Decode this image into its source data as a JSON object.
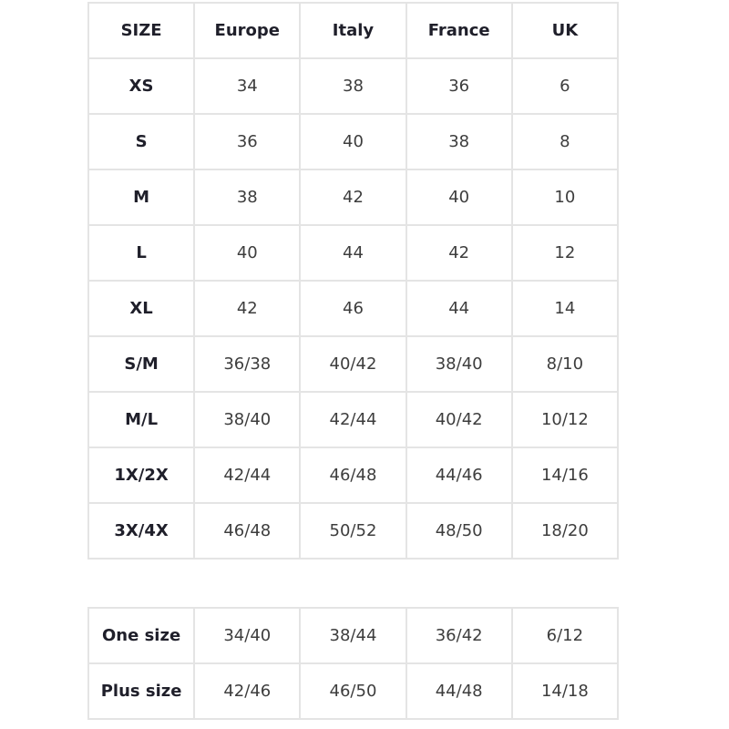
{
  "size_table": {
    "headers": [
      "SIZE",
      "Europe",
      "Italy",
      "France",
      "UK"
    ],
    "rows": [
      [
        "XS",
        "34",
        "38",
        "36",
        "6"
      ],
      [
        "S",
        "36",
        "40",
        "38",
        "8"
      ],
      [
        "M",
        "38",
        "42",
        "40",
        "10"
      ],
      [
        "L",
        "40",
        "44",
        "42",
        "12"
      ],
      [
        "XL",
        "42",
        "46",
        "44",
        "14"
      ],
      [
        "S/M",
        "36/38",
        "40/42",
        "38/40",
        "8/10"
      ],
      [
        "M/L",
        "38/40",
        "42/44",
        "40/42",
        "10/12"
      ],
      [
        "1X/2X",
        "42/44",
        "46/48",
        "44/46",
        "14/16"
      ],
      [
        "3X/4X",
        "46/48",
        "50/52",
        "48/50",
        "18/20"
      ]
    ]
  },
  "extra_table": {
    "rows": [
      [
        "One size",
        "34/40",
        "38/44",
        "36/42",
        "6/12"
      ],
      [
        "Plus size",
        "42/46",
        "46/50",
        "44/48",
        "14/18"
      ]
    ]
  }
}
